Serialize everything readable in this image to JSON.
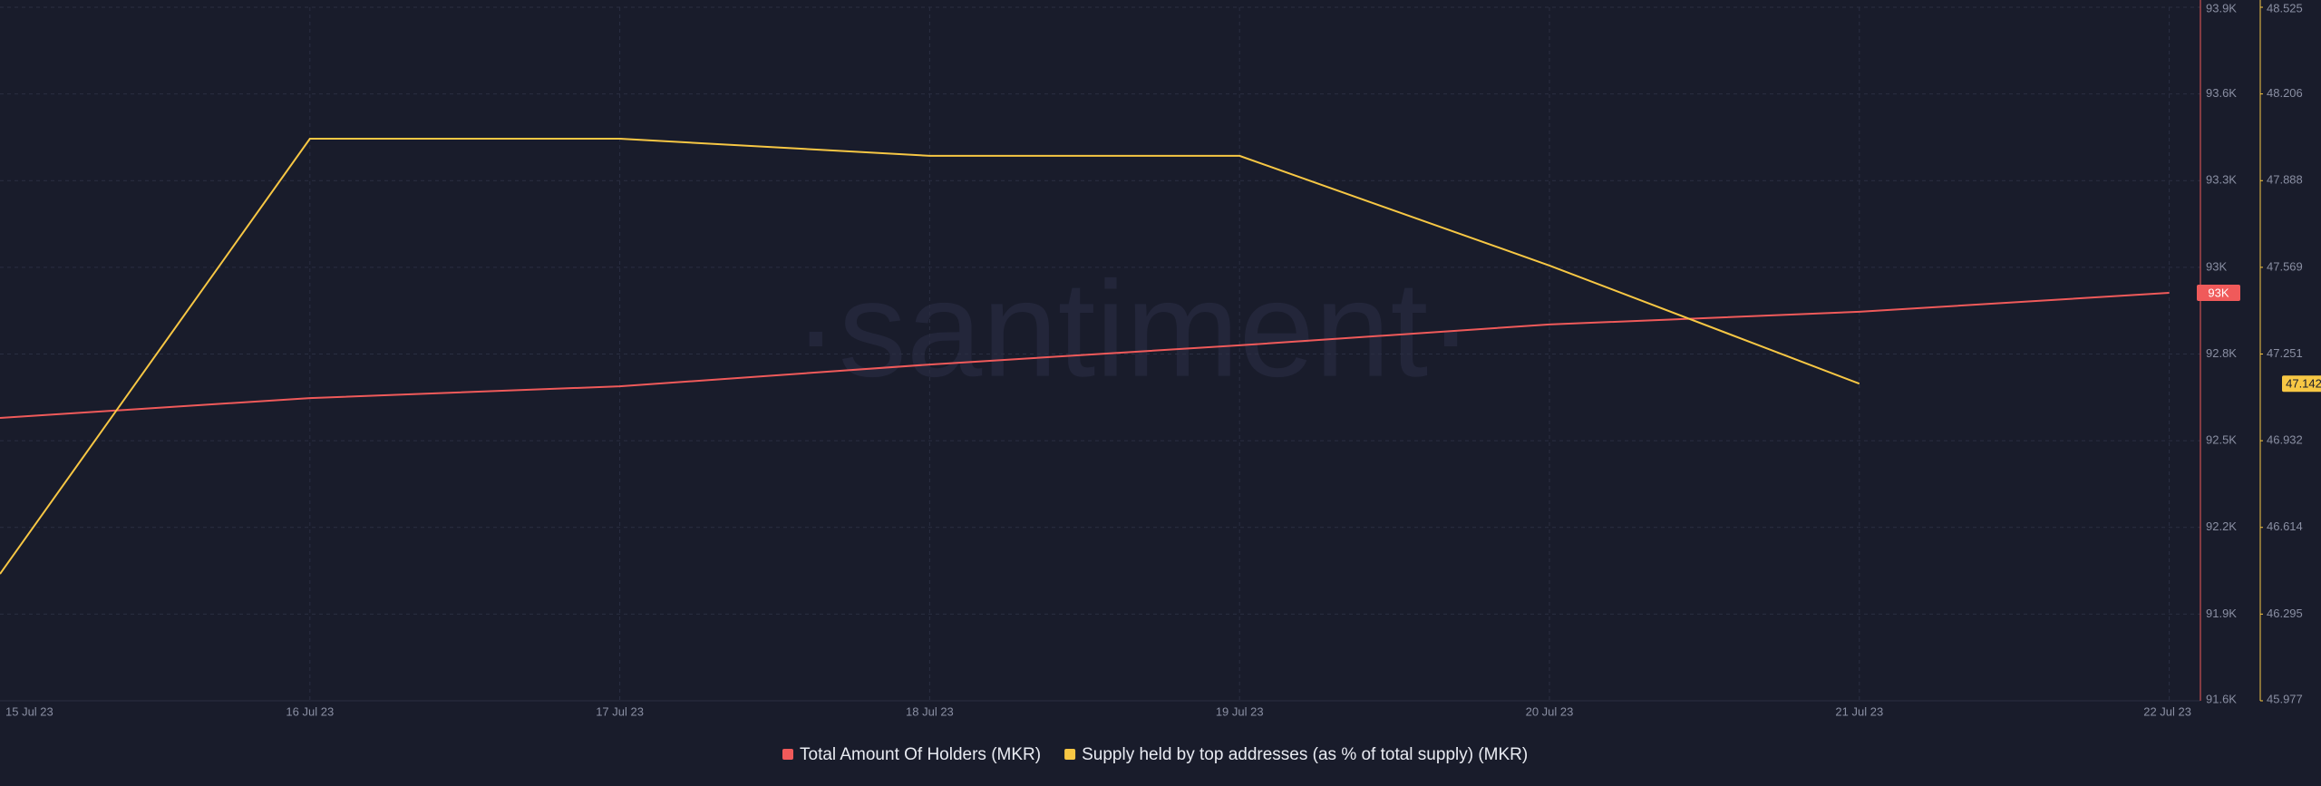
{
  "chart_data": {
    "type": "line",
    "watermark": "·santiment·",
    "categories": [
      "15 Jul 23",
      "16 Jul 23",
      "17 Jul 23",
      "18 Jul 23",
      "19 Jul 23",
      "20 Jul 23",
      "21 Jul 23",
      "22 Jul 23"
    ],
    "series": [
      {
        "name": "Total Amount Of Holders (MKR)",
        "color": "#f05a5a",
        "axis": "y",
        "values": [
          92538,
          92604,
          92643,
          92715,
          92779,
          92848,
          92890,
          92953
        ],
        "last_label": "93K"
      },
      {
        "name": "Supply held by top addresses (as % of total supply) (MKR)",
        "color": "#f7c744",
        "axis": "y2",
        "values": [
          46.443,
          48.042,
          48.042,
          47.979,
          47.979,
          47.576,
          47.142,
          null
        ],
        "last_label": "47.142"
      }
    ],
    "ylim": [
      91600,
      93900
    ],
    "yticks": [
      {
        "value": 91600,
        "label": "91.6K"
      },
      {
        "value": 91887.5,
        "label": "91.9K"
      },
      {
        "value": 92175,
        "label": "92.2K"
      },
      {
        "value": 92462.5,
        "label": "92.5K"
      },
      {
        "value": 92750,
        "label": "92.8K"
      },
      {
        "value": 93037.5,
        "label": "93K"
      },
      {
        "value": 93325,
        "label": "93.3K"
      },
      {
        "value": 93612.5,
        "label": "93.6K"
      },
      {
        "value": 93900,
        "label": "93.9K"
      }
    ],
    "y2lim": [
      45.977,
      48.525
    ],
    "y2ticks": [
      45.977,
      {
        "value": 46.2955,
        "label": "46.295"
      },
      46.614,
      {
        "value": 46.9325,
        "label": "46.932"
      },
      47.251,
      {
        "value": 47.5695,
        "label": "47.569"
      },
      47.888,
      {
        "value": 48.2065,
        "label": "48.206"
      },
      48.525
    ],
    "grid": true
  }
}
